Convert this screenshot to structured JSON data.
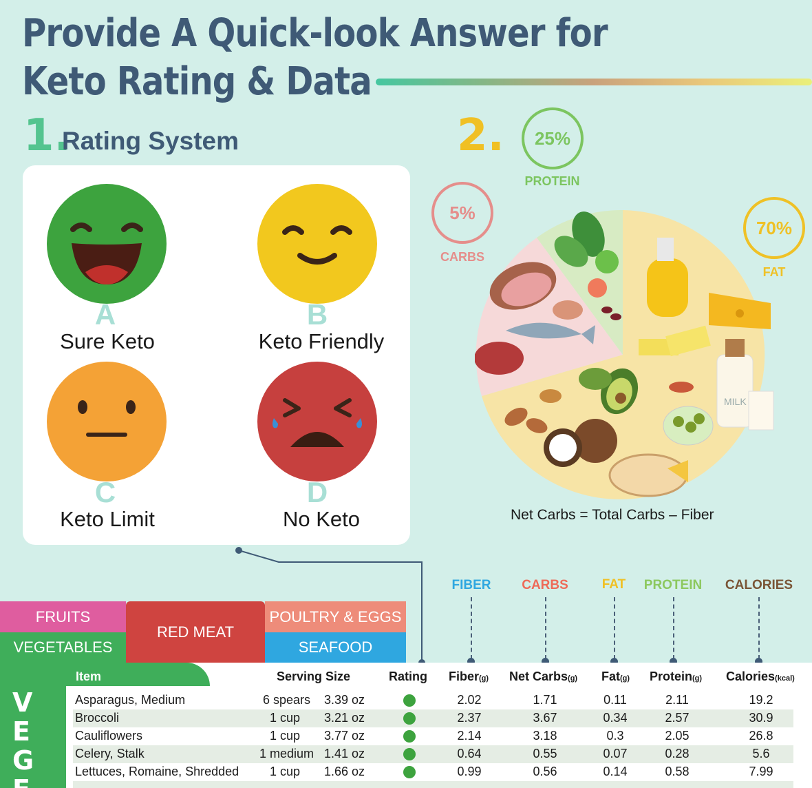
{
  "title": {
    "line1": "Provide A Quick-look Answer for",
    "line2": "Keto Rating & Data"
  },
  "section1": {
    "number": "1.",
    "label": "Rating System"
  },
  "ratings": [
    {
      "letter": "A",
      "label": "Sure Keto",
      "color": "#3da33e"
    },
    {
      "letter": "B",
      "label": "Keto Friendly",
      "color": "#f2c81e"
    },
    {
      "letter": "C",
      "label": "Keto Limit",
      "color": "#f4a236"
    },
    {
      "letter": "D",
      "label": "No Keto",
      "color": "#c6403e"
    }
  ],
  "section2": {
    "number": "2.",
    "macros": [
      {
        "pct": "25%",
        "label": "PROTEIN",
        "color": "#7cc560"
      },
      {
        "pct": "5%",
        "label": "CARBS",
        "color": "#e58e8b"
      },
      {
        "pct": "70%",
        "label": "FAT",
        "color": "#efc126"
      }
    ],
    "formula": "Net Carbs = Total Carbs – Fiber",
    "milk_label": "MILK"
  },
  "tabs": {
    "fruits": "FRUITS",
    "vegetables": "VEGETABLES",
    "red_meat": "RED MEAT",
    "poultry": "POULTRY & EGGS",
    "seafood": "SEAFOOD"
  },
  "column_keys": {
    "fiber": "FIBER",
    "carbs": "CARBS",
    "fat": "FAT",
    "protein": "PROTEIN",
    "calories": "CALORIES"
  },
  "table": {
    "headers": {
      "item": "Item",
      "serving": "Serving Size",
      "rating": "Rating",
      "fiber": "Fiber",
      "fiber_unit": "(g)",
      "net_carbs": "Net Carbs",
      "net_carbs_unit": "(g)",
      "fat": "Fat",
      "fat_unit": "(g)",
      "protein": "Protein",
      "protein_unit": "(g)",
      "calories": "Calories",
      "calories_unit": "(kcal)"
    },
    "category_letters": [
      "V",
      "E",
      "G",
      "E"
    ],
    "rows": [
      {
        "item": "Asparagus, Medium",
        "qty": "6 spears",
        "oz": "3.39 oz",
        "fiber": "2.02",
        "net_carbs": "1.71",
        "fat": "0.11",
        "protein": "2.11",
        "calories": "19.2"
      },
      {
        "item": "Broccoli",
        "qty": "1 cup",
        "oz": "3.21 oz",
        "fiber": "2.37",
        "net_carbs": "3.67",
        "fat": "0.34",
        "protein": "2.57",
        "calories": "30.9"
      },
      {
        "item": "Cauliflowers",
        "qty": "1 cup",
        "oz": "3.77 oz",
        "fiber": "2.14",
        "net_carbs": "3.18",
        "fat": "0.3",
        "protein": "2.05",
        "calories": "26.8"
      },
      {
        "item": "Celery, Stalk",
        "qty": "1 medium",
        "oz": "1.41 oz",
        "fiber": "0.64",
        "net_carbs": "0.55",
        "fat": "0.07",
        "protein": "0.28",
        "calories": "5.6"
      },
      {
        "item": "Lettuces, Romaine, Shredded",
        "qty": "1 cup",
        "oz": "1.66 oz",
        "fiber": "0.99",
        "net_carbs": "0.56",
        "fat": "0.14",
        "protein": "0.58",
        "calories": "7.99"
      }
    ]
  }
}
